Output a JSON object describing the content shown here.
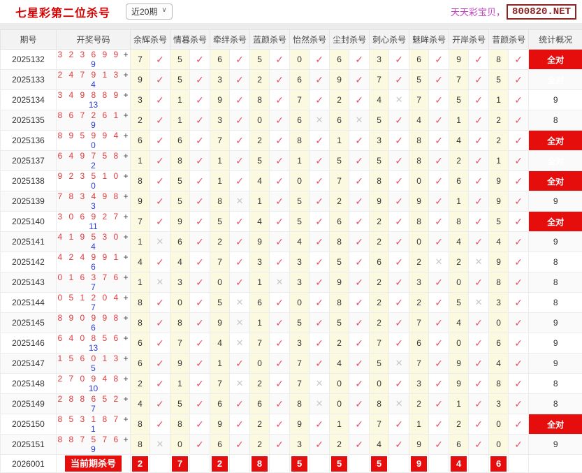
{
  "header": {
    "title": "七星彩第二位杀号",
    "range_select": "近20期",
    "site_label": "天天彩宝贝，",
    "site_badge": "800820.NET"
  },
  "table": {
    "col_period": "期号",
    "col_numbers": "开奖号码",
    "experts": [
      "余辉杀号",
      "情暮杀号",
      "牵绊杀号",
      "蓝颜杀号",
      "怡然杀号",
      "尘封杀号",
      "刺心杀号",
      "魅眸杀号",
      "开岸杀号",
      "昔颜杀号"
    ],
    "col_stats": "统计概况",
    "all_correct_label": "全对",
    "check_symbol": "✓",
    "cross_symbol": "✕",
    "accent_red": "#e60d0d",
    "digit_red": "#e4393c",
    "bonus_blue": "#2b3cd6",
    "rows": [
      {
        "period": "2025132",
        "main": "3 2 3 6 9 9",
        "bonus": "9",
        "kills": [
          [
            7,
            1
          ],
          [
            5,
            1
          ],
          [
            6,
            1
          ],
          [
            5,
            1
          ],
          [
            0,
            1
          ],
          [
            6,
            1
          ],
          [
            3,
            1
          ],
          [
            6,
            1
          ],
          [
            9,
            1
          ],
          [
            8,
            1
          ]
        ],
        "stat": "全对"
      },
      {
        "period": "2025133",
        "main": "2 4 7 9 1 3",
        "bonus": "4",
        "kills": [
          [
            9,
            1
          ],
          [
            5,
            1
          ],
          [
            3,
            1
          ],
          [
            2,
            1
          ],
          [
            6,
            1
          ],
          [
            9,
            1
          ],
          [
            7,
            1
          ],
          [
            5,
            1
          ],
          [
            7,
            1
          ],
          [
            5,
            1
          ]
        ],
        "stat": "全对"
      },
      {
        "period": "2025134",
        "main": "3 4 9 8 8 9",
        "bonus": "13",
        "kills": [
          [
            3,
            1
          ],
          [
            1,
            1
          ],
          [
            9,
            1
          ],
          [
            8,
            1
          ],
          [
            7,
            1
          ],
          [
            2,
            1
          ],
          [
            4,
            0
          ],
          [
            7,
            1
          ],
          [
            5,
            1
          ],
          [
            1,
            1
          ]
        ],
        "stat": "9"
      },
      {
        "period": "2025135",
        "main": "8 6 7 2 6 1",
        "bonus": "9",
        "kills": [
          [
            2,
            1
          ],
          [
            1,
            1
          ],
          [
            3,
            1
          ],
          [
            0,
            1
          ],
          [
            6,
            0
          ],
          [
            6,
            0
          ],
          [
            5,
            1
          ],
          [
            4,
            1
          ],
          [
            1,
            1
          ],
          [
            2,
            1
          ]
        ],
        "stat": "8"
      },
      {
        "period": "2025136",
        "main": "8 9 5 9 9 4",
        "bonus": "0",
        "kills": [
          [
            6,
            1
          ],
          [
            6,
            1
          ],
          [
            7,
            1
          ],
          [
            2,
            1
          ],
          [
            8,
            1
          ],
          [
            1,
            1
          ],
          [
            3,
            1
          ],
          [
            8,
            1
          ],
          [
            4,
            1
          ],
          [
            2,
            1
          ]
        ],
        "stat": "全对"
      },
      {
        "period": "2025137",
        "main": "6 4 9 7 5 8",
        "bonus": "2",
        "kills": [
          [
            1,
            1
          ],
          [
            8,
            1
          ],
          [
            1,
            1
          ],
          [
            5,
            1
          ],
          [
            1,
            1
          ],
          [
            5,
            1
          ],
          [
            5,
            1
          ],
          [
            8,
            1
          ],
          [
            2,
            1
          ],
          [
            1,
            1
          ]
        ],
        "stat": "全对"
      },
      {
        "period": "2025138",
        "main": "9 2 3 5 1 0",
        "bonus": "0",
        "kills": [
          [
            8,
            1
          ],
          [
            5,
            1
          ],
          [
            1,
            1
          ],
          [
            4,
            1
          ],
          [
            0,
            1
          ],
          [
            7,
            1
          ],
          [
            8,
            1
          ],
          [
            0,
            1
          ],
          [
            6,
            1
          ],
          [
            9,
            1
          ]
        ],
        "stat": "全对"
      },
      {
        "period": "2025139",
        "main": "7 8 3 4 9 8",
        "bonus": "3",
        "kills": [
          [
            9,
            1
          ],
          [
            5,
            1
          ],
          [
            8,
            0
          ],
          [
            1,
            1
          ],
          [
            5,
            1
          ],
          [
            2,
            1
          ],
          [
            9,
            1
          ],
          [
            9,
            1
          ],
          [
            1,
            1
          ],
          [
            9,
            1
          ]
        ],
        "stat": "9"
      },
      {
        "period": "2025140",
        "main": "3 0 6 9 2 7",
        "bonus": "11",
        "kills": [
          [
            7,
            1
          ],
          [
            9,
            1
          ],
          [
            5,
            1
          ],
          [
            4,
            1
          ],
          [
            5,
            1
          ],
          [
            6,
            1
          ],
          [
            2,
            1
          ],
          [
            8,
            1
          ],
          [
            8,
            1
          ],
          [
            5,
            1
          ]
        ],
        "stat": "全对"
      },
      {
        "period": "2025141",
        "main": "4 1 9 5 3 0",
        "bonus": "4",
        "kills": [
          [
            1,
            0
          ],
          [
            6,
            1
          ],
          [
            2,
            1
          ],
          [
            9,
            1
          ],
          [
            4,
            1
          ],
          [
            8,
            1
          ],
          [
            2,
            1
          ],
          [
            0,
            1
          ],
          [
            4,
            1
          ],
          [
            4,
            1
          ]
        ],
        "stat": "9"
      },
      {
        "period": "2025142",
        "main": "4 2 4 9 9 1",
        "bonus": "6",
        "kills": [
          [
            4,
            1
          ],
          [
            4,
            1
          ],
          [
            7,
            1
          ],
          [
            3,
            1
          ],
          [
            3,
            1
          ],
          [
            5,
            1
          ],
          [
            6,
            1
          ],
          [
            2,
            0
          ],
          [
            2,
            0
          ],
          [
            9,
            1
          ]
        ],
        "stat": "8"
      },
      {
        "period": "2025143",
        "main": "0 1 6 3 7 6",
        "bonus": "7",
        "kills": [
          [
            1,
            0
          ],
          [
            3,
            1
          ],
          [
            0,
            1
          ],
          [
            1,
            0
          ],
          [
            3,
            1
          ],
          [
            9,
            1
          ],
          [
            2,
            1
          ],
          [
            3,
            1
          ],
          [
            0,
            1
          ],
          [
            8,
            1
          ]
        ],
        "stat": "8"
      },
      {
        "period": "2025144",
        "main": "0 5 1 2 0 4",
        "bonus": "7",
        "kills": [
          [
            8,
            1
          ],
          [
            0,
            1
          ],
          [
            5,
            0
          ],
          [
            6,
            1
          ],
          [
            0,
            1
          ],
          [
            8,
            1
          ],
          [
            2,
            1
          ],
          [
            2,
            1
          ],
          [
            5,
            0
          ],
          [
            3,
            1
          ]
        ],
        "stat": "8"
      },
      {
        "period": "2025145",
        "main": "8 9 0 9 9 8",
        "bonus": "6",
        "kills": [
          [
            8,
            1
          ],
          [
            8,
            1
          ],
          [
            9,
            0
          ],
          [
            1,
            1
          ],
          [
            5,
            1
          ],
          [
            5,
            1
          ],
          [
            2,
            1
          ],
          [
            7,
            1
          ],
          [
            4,
            1
          ],
          [
            0,
            1
          ]
        ],
        "stat": "9"
      },
      {
        "period": "2025146",
        "main": "6 4 0 8 5 6",
        "bonus": "13",
        "kills": [
          [
            6,
            1
          ],
          [
            7,
            1
          ],
          [
            4,
            0
          ],
          [
            7,
            1
          ],
          [
            3,
            1
          ],
          [
            2,
            1
          ],
          [
            7,
            1
          ],
          [
            6,
            1
          ],
          [
            0,
            1
          ],
          [
            6,
            1
          ]
        ],
        "stat": "9"
      },
      {
        "period": "2025147",
        "main": "1 5 6 0 1 3",
        "bonus": "5",
        "kills": [
          [
            6,
            1
          ],
          [
            9,
            1
          ],
          [
            1,
            1
          ],
          [
            0,
            1
          ],
          [
            7,
            1
          ],
          [
            4,
            1
          ],
          [
            5,
            0
          ],
          [
            7,
            1
          ],
          [
            9,
            1
          ],
          [
            4,
            1
          ]
        ],
        "stat": "9"
      },
      {
        "period": "2025148",
        "main": "2 7 0 9 4 8",
        "bonus": "10",
        "kills": [
          [
            2,
            1
          ],
          [
            1,
            1
          ],
          [
            7,
            0
          ],
          [
            2,
            1
          ],
          [
            7,
            0
          ],
          [
            0,
            1
          ],
          [
            0,
            1
          ],
          [
            3,
            1
          ],
          [
            9,
            1
          ],
          [
            8,
            1
          ]
        ],
        "stat": "8"
      },
      {
        "period": "2025149",
        "main": "2 8 8 6 5 2",
        "bonus": "7",
        "kills": [
          [
            4,
            1
          ],
          [
            5,
            1
          ],
          [
            6,
            1
          ],
          [
            6,
            1
          ],
          [
            8,
            0
          ],
          [
            0,
            1
          ],
          [
            8,
            0
          ],
          [
            2,
            1
          ],
          [
            1,
            1
          ],
          [
            3,
            1
          ]
        ],
        "stat": "8"
      },
      {
        "period": "2025150",
        "main": "8 5 3 1 8 7",
        "bonus": "1",
        "kills": [
          [
            8,
            1
          ],
          [
            8,
            1
          ],
          [
            9,
            1
          ],
          [
            2,
            1
          ],
          [
            9,
            1
          ],
          [
            1,
            1
          ],
          [
            7,
            1
          ],
          [
            1,
            1
          ],
          [
            2,
            1
          ],
          [
            0,
            1
          ]
        ],
        "stat": "全对"
      },
      {
        "period": "2025151",
        "main": "8 8 7 5 7 6",
        "bonus": "9",
        "kills": [
          [
            8,
            0
          ],
          [
            0,
            1
          ],
          [
            6,
            1
          ],
          [
            2,
            1
          ],
          [
            3,
            1
          ],
          [
            2,
            1
          ],
          [
            4,
            1
          ],
          [
            9,
            1
          ],
          [
            6,
            1
          ],
          [
            0,
            1
          ]
        ],
        "stat": "9"
      }
    ],
    "current_row": {
      "period": "2026001",
      "label": "当前期杀号",
      "kills": [
        "2",
        "7",
        "2",
        "8",
        "5",
        "5",
        "5",
        "9",
        "4",
        "6"
      ]
    }
  }
}
